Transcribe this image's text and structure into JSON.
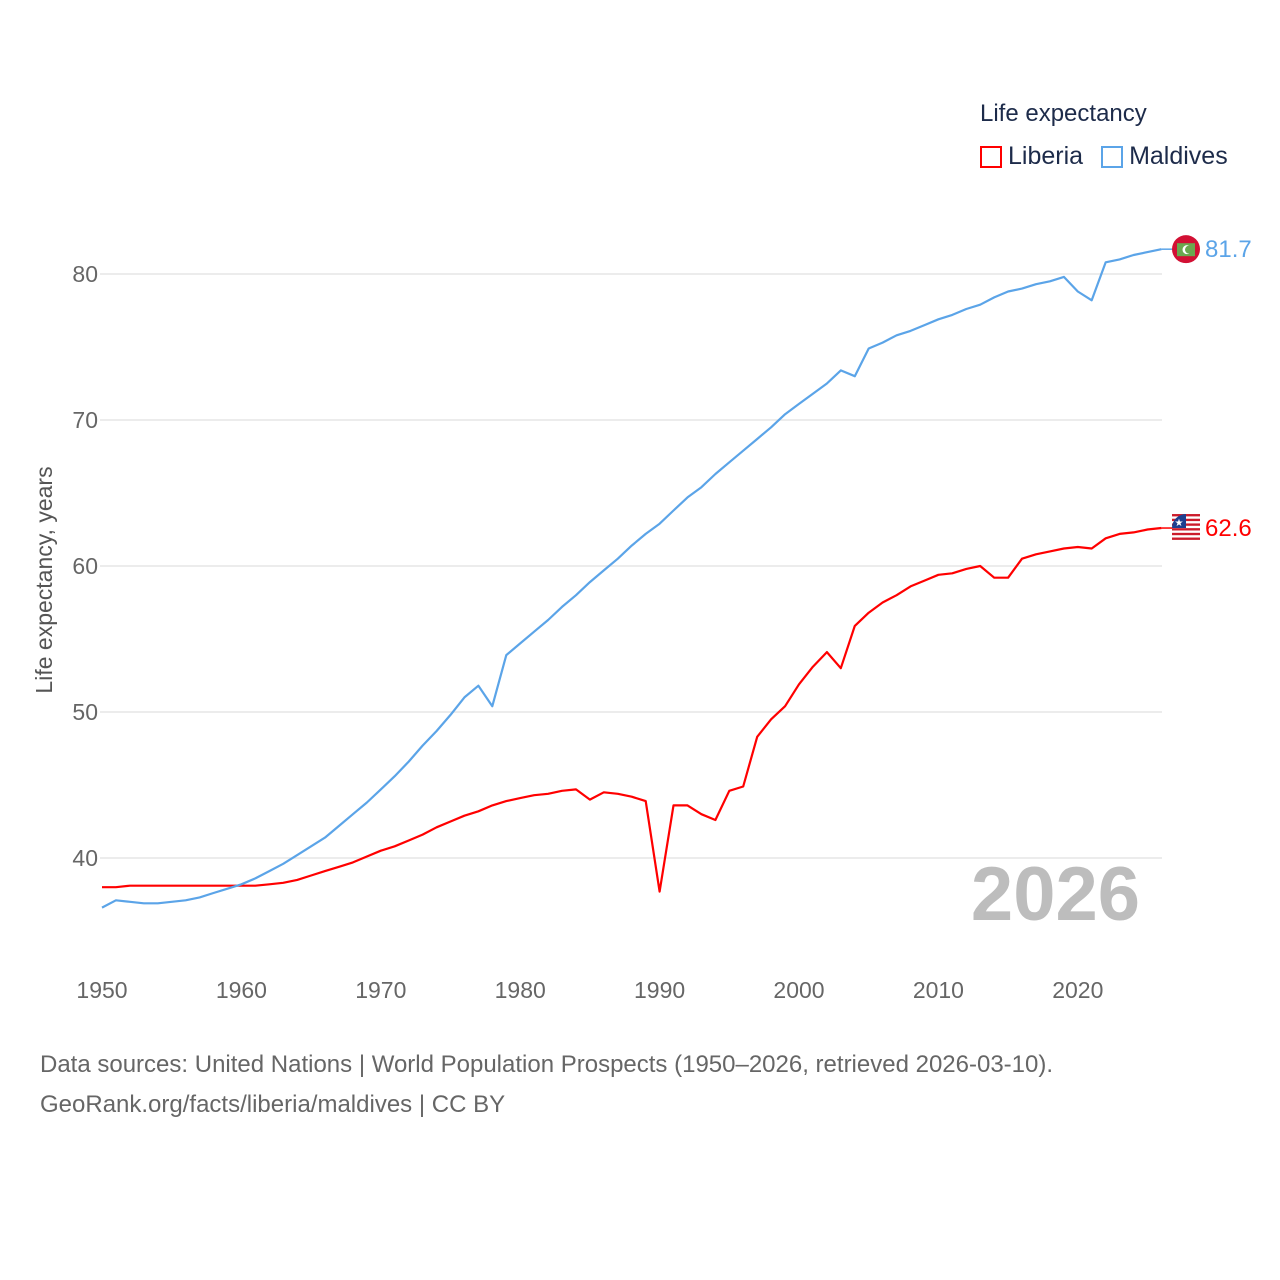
{
  "chart_data": {
    "type": "line",
    "ylabel": "Life expectancy, years",
    "xlabel": "",
    "legend_title": "Life expectancy",
    "legend_placement": "top-right",
    "xlim": [
      1950,
      2026
    ],
    "ylim": [
      35,
      85
    ],
    "x_ticks": [
      "1950",
      "1960",
      "1970",
      "1980",
      "1990",
      "2000",
      "2010",
      "2020"
    ],
    "y_ticks": [
      "40",
      "50",
      "60",
      "70",
      "80"
    ],
    "grid": true,
    "year_watermark": "2026",
    "x": [
      1950,
      1951,
      1952,
      1953,
      1954,
      1955,
      1956,
      1957,
      1958,
      1959,
      1960,
      1961,
      1962,
      1963,
      1964,
      1965,
      1966,
      1967,
      1968,
      1969,
      1970,
      1971,
      1972,
      1973,
      1974,
      1975,
      1976,
      1977,
      1978,
      1979,
      1980,
      1981,
      1982,
      1983,
      1984,
      1985,
      1986,
      1987,
      1988,
      1989,
      1990,
      1991,
      1992,
      1993,
      1994,
      1995,
      1996,
      1997,
      1998,
      1999,
      2000,
      2001,
      2002,
      2003,
      2004,
      2005,
      2006,
      2007,
      2008,
      2009,
      2010,
      2011,
      2012,
      2013,
      2014,
      2015,
      2016,
      2017,
      2018,
      2019,
      2020,
      2021,
      2022,
      2023,
      2024,
      2025,
      2026
    ],
    "series": [
      {
        "name": "Liberia",
        "color": "#ff0000",
        "end_label": "62.6",
        "values": [
          38.0,
          38.0,
          38.1,
          38.1,
          38.1,
          38.1,
          38.1,
          38.1,
          38.1,
          38.1,
          38.1,
          38.1,
          38.2,
          38.3,
          38.5,
          38.8,
          39.1,
          39.4,
          39.7,
          40.1,
          40.5,
          40.8,
          41.2,
          41.6,
          42.1,
          42.5,
          42.9,
          43.2,
          43.6,
          43.9,
          44.1,
          44.3,
          44.4,
          44.6,
          44.7,
          44.0,
          44.5,
          44.4,
          44.2,
          43.9,
          37.7,
          43.6,
          43.6,
          43.0,
          42.6,
          44.6,
          44.9,
          48.3,
          49.5,
          50.4,
          51.9,
          53.1,
          54.1,
          53.0,
          55.9,
          56.8,
          57.5,
          58.0,
          58.6,
          59.0,
          59.4,
          59.5,
          59.8,
          60.0,
          59.2,
          59.2,
          60.5,
          60.8,
          61.0,
          61.2,
          61.3,
          61.2,
          61.9,
          62.2,
          62.3,
          62.5,
          62.6
        ]
      },
      {
        "name": "Maldives",
        "color": "#5ba4e8",
        "end_label": "81.7",
        "values": [
          36.6,
          37.1,
          37.0,
          36.9,
          36.9,
          37.0,
          37.1,
          37.3,
          37.6,
          37.9,
          38.2,
          38.6,
          39.1,
          39.6,
          40.2,
          40.8,
          41.4,
          42.2,
          43.0,
          43.8,
          44.7,
          45.6,
          46.6,
          47.7,
          48.7,
          49.8,
          51.0,
          51.8,
          50.4,
          53.9,
          54.7,
          55.5,
          56.3,
          57.2,
          58.0,
          58.9,
          59.7,
          60.5,
          61.4,
          62.2,
          62.9,
          63.8,
          64.7,
          65.4,
          66.3,
          67.1,
          67.9,
          68.7,
          69.5,
          70.4,
          71.1,
          71.8,
          72.5,
          73.4,
          73.0,
          74.9,
          75.3,
          75.8,
          76.1,
          76.5,
          76.9,
          77.2,
          77.6,
          77.9,
          78.4,
          78.8,
          79.0,
          79.3,
          79.5,
          79.8,
          78.8,
          78.2,
          80.8,
          81.0,
          81.3,
          81.5,
          81.7
        ]
      }
    ]
  },
  "source": {
    "line1": "Data sources: United Nations | World Population Prospects (1950–2026, retrieved 2026-03-10).",
    "line2": "GeoRank.org/facts/liberia/maldives | CC BY"
  }
}
